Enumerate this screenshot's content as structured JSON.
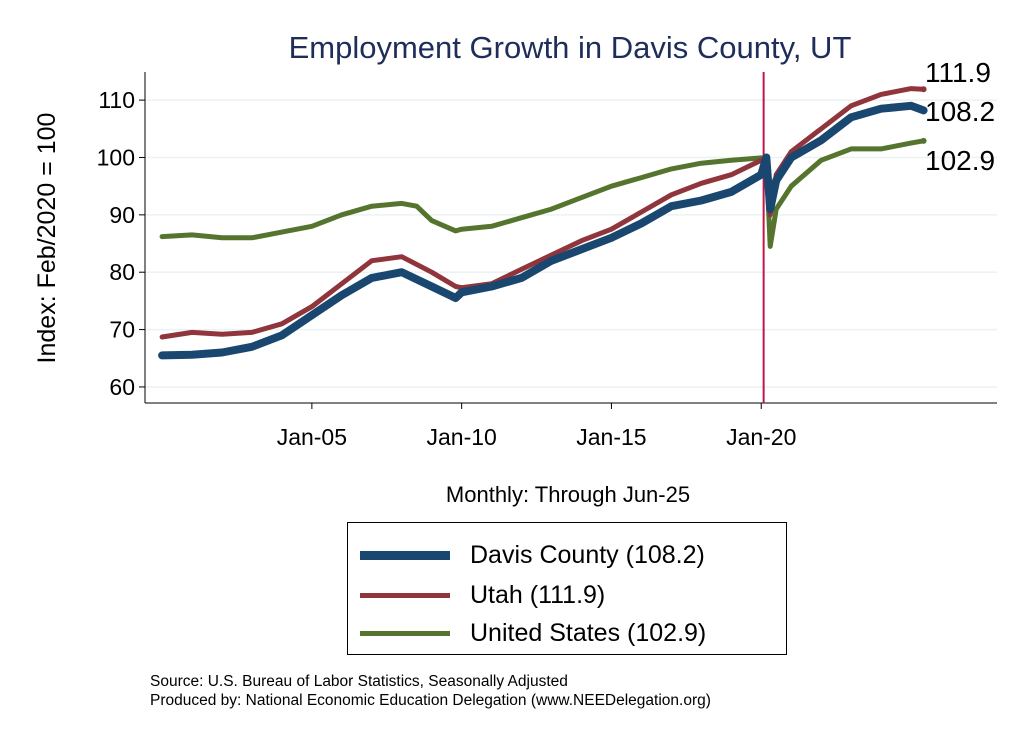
{
  "chart_data": {
    "type": "line",
    "title": "Employment Growth in Davis  County, UT",
    "xlabel": "Monthly: Through Jun-25",
    "ylabel": "Index: Feb/2020 = 100",
    "xlim": [
      1999.43,
      2027.87
    ],
    "ylim": [
      57.2,
      114.9
    ],
    "x_ticks": [
      {
        "value": 2005,
        "label": "Jan-05"
      },
      {
        "value": 2010,
        "label": "Jan-10"
      },
      {
        "value": 2015,
        "label": "Jan-15"
      },
      {
        "value": 2020,
        "label": "Jan-20"
      }
    ],
    "y_ticks": [
      60,
      70,
      80,
      90,
      100,
      110
    ],
    "grid": true,
    "reference_line_x": 2020.08,
    "reference_color": "#c0174a",
    "series": [
      {
        "name": "Davis  County (108.2)",
        "end_label": "108.2",
        "color": "#1a476f",
        "width": 8,
        "points": [
          [
            2000,
            65.5
          ],
          [
            2001,
            65.6
          ],
          [
            2002,
            66
          ],
          [
            2003,
            67
          ],
          [
            2004,
            69
          ],
          [
            2005,
            72.5
          ],
          [
            2006,
            76
          ],
          [
            2007,
            79
          ],
          [
            2008,
            80
          ],
          [
            2009,
            77.5
          ],
          [
            2009.8,
            75.5
          ],
          [
            2010,
            76.5
          ],
          [
            2011,
            77.5
          ],
          [
            2012,
            79
          ],
          [
            2013,
            82
          ],
          [
            2014,
            84
          ],
          [
            2015,
            86
          ],
          [
            2016,
            88.5
          ],
          [
            2017,
            91.5
          ],
          [
            2018,
            92.5
          ],
          [
            2019,
            94
          ],
          [
            2020,
            97
          ],
          [
            2020.17,
            100
          ],
          [
            2020.3,
            91
          ],
          [
            2020.5,
            96
          ],
          [
            2021,
            100
          ],
          [
            2022,
            103
          ],
          [
            2023,
            107
          ],
          [
            2024,
            108.5
          ],
          [
            2025,
            109
          ],
          [
            2025.42,
            108.2
          ]
        ]
      },
      {
        "name": "Utah (111.9)",
        "end_label": "111.9",
        "color": "#90353b",
        "width": 5,
        "points": [
          [
            2000,
            68.7
          ],
          [
            2001,
            69.5
          ],
          [
            2002,
            69.2
          ],
          [
            2003,
            69.5
          ],
          [
            2004,
            71
          ],
          [
            2005,
            74
          ],
          [
            2006,
            78
          ],
          [
            2007,
            82
          ],
          [
            2008,
            82.7
          ],
          [
            2009,
            80
          ],
          [
            2009.8,
            77.5
          ],
          [
            2010,
            77.3
          ],
          [
            2011,
            78
          ],
          [
            2012,
            80.5
          ],
          [
            2013,
            83
          ],
          [
            2014,
            85.5
          ],
          [
            2015,
            87.5
          ],
          [
            2016,
            90.5
          ],
          [
            2017,
            93.5
          ],
          [
            2018,
            95.5
          ],
          [
            2019,
            97
          ],
          [
            2020,
            99.5
          ],
          [
            2020.17,
            100
          ],
          [
            2020.3,
            90
          ],
          [
            2020.5,
            97
          ],
          [
            2021,
            101
          ],
          [
            2022,
            105
          ],
          [
            2023,
            109
          ],
          [
            2024,
            111
          ],
          [
            2025,
            112
          ],
          [
            2025.42,
            111.9
          ]
        ]
      },
      {
        "name": "United States (102.9)",
        "end_label": "102.9",
        "color": "#55752f",
        "width": 5,
        "points": [
          [
            2000,
            86.2
          ],
          [
            2001,
            86.5
          ],
          [
            2002,
            86
          ],
          [
            2003,
            86
          ],
          [
            2004,
            87
          ],
          [
            2005,
            88
          ],
          [
            2006,
            90
          ],
          [
            2007,
            91.5
          ],
          [
            2008,
            92
          ],
          [
            2008.5,
            91.5
          ],
          [
            2009,
            89
          ],
          [
            2009.8,
            87.2
          ],
          [
            2010,
            87.5
          ],
          [
            2011,
            88
          ],
          [
            2012,
            89.5
          ],
          [
            2013,
            91
          ],
          [
            2014,
            93
          ],
          [
            2015,
            95
          ],
          [
            2016,
            96.5
          ],
          [
            2017,
            98
          ],
          [
            2018,
            99
          ],
          [
            2019,
            99.5
          ],
          [
            2020.17,
            100
          ],
          [
            2020.3,
            84.5
          ],
          [
            2020.5,
            91
          ],
          [
            2021,
            95
          ],
          [
            2022,
            99.5
          ],
          [
            2023,
            101.5
          ],
          [
            2024,
            101.5
          ],
          [
            2025,
            102.5
          ],
          [
            2025.42,
            102.9
          ]
        ]
      }
    ]
  },
  "source": "Source: U.S. Bureau of Labor Statistics, Seasonally Adjusted",
  "producer": "Produced by: National Economic Education Delegation (www.NEEDelegation.org)"
}
